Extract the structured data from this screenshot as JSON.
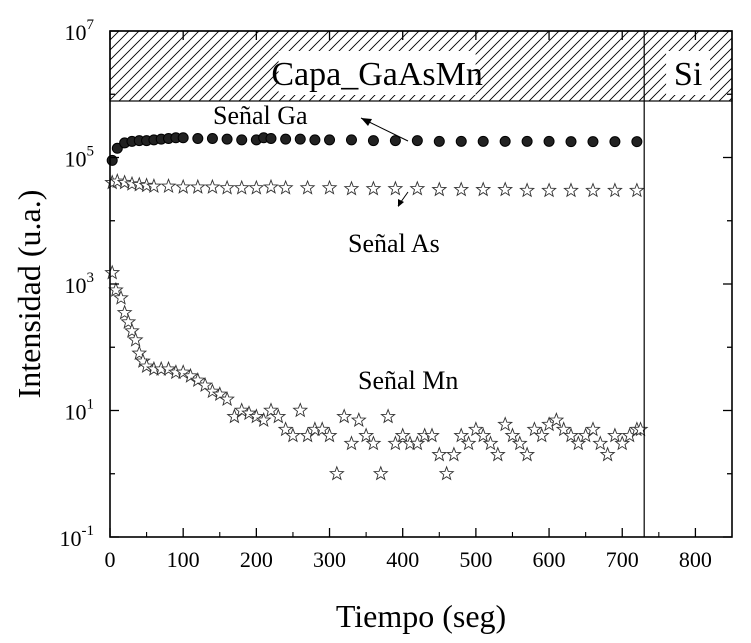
{
  "chart_data": {
    "type": "scatter",
    "xlabel": "Tiempo (seg)",
    "ylabel": "Intensidad (u.a.)",
    "xlim": [
      0,
      850
    ],
    "ylim_log10": [
      -1,
      7
    ],
    "y_scale": "log",
    "x_ticks": [
      0,
      100,
      200,
      300,
      400,
      500,
      600,
      700,
      800
    ],
    "x_tick_labels": [
      "0",
      "100",
      "200",
      "300",
      "400",
      "500",
      "600",
      "700",
      "800"
    ],
    "y_ticks": [
      {
        "base": "10",
        "exp": "-1"
      },
      {
        "base": "10",
        "exp": "1"
      },
      {
        "base": "10",
        "exp": "3"
      },
      {
        "base": "10",
        "exp": "5"
      },
      {
        "base": "10",
        "exp": "7"
      }
    ],
    "regions": [
      {
        "label": "Capa_GaAsMn",
        "x_range": [
          0,
          730
        ]
      },
      {
        "label": "Si",
        "x_range": [
          730,
          850
        ]
      }
    ],
    "annotations": [
      "Señal Ga",
      "Señal As",
      "Señal Mn"
    ],
    "series": [
      {
        "name": "Señal Ga",
        "marker": "circle",
        "x": [
          3,
          10,
          20,
          30,
          40,
          50,
          60,
          70,
          80,
          90,
          100,
          120,
          140,
          160,
          180,
          200,
          210,
          220,
          240,
          260,
          280,
          300,
          330,
          360,
          390,
          420,
          450,
          480,
          510,
          540,
          570,
          600,
          630,
          660,
          690,
          720
        ],
        "y": [
          90000,
          140000,
          170000,
          180000,
          185000,
          185000,
          190000,
          195000,
          200000,
          205000,
          205000,
          200000,
          200000,
          195000,
          190000,
          190000,
          205000,
          200000,
          195000,
          195000,
          190000,
          190000,
          190000,
          185000,
          185000,
          185000,
          180000,
          180000,
          180000,
          180000,
          180000,
          180000,
          178000,
          178000,
          178000,
          178000
        ]
      },
      {
        "name": "Señal As",
        "marker": "star",
        "x": [
          3,
          10,
          20,
          30,
          40,
          50,
          60,
          80,
          100,
          120,
          140,
          160,
          180,
          200,
          220,
          240,
          270,
          300,
          330,
          360,
          390,
          420,
          450,
          480,
          510,
          540,
          570,
          600,
          630,
          660,
          690,
          720
        ],
        "y": [
          40000,
          42000,
          40000,
          38000,
          37000,
          36000,
          35000,
          35000,
          34000,
          34000,
          34000,
          33000,
          33000,
          33000,
          34000,
          33000,
          33000,
          33000,
          32000,
          32000,
          32000,
          32000,
          31000,
          31000,
          31000,
          31000,
          30000,
          30000,
          30000,
          30000,
          30000,
          30000
        ]
      },
      {
        "name": "Señal Mn",
        "marker": "star",
        "x": [
          3,
          8,
          15,
          20,
          25,
          30,
          35,
          40,
          45,
          50,
          60,
          70,
          80,
          90,
          100,
          110,
          120,
          130,
          140,
          150,
          160,
          170,
          180,
          190,
          200,
          210,
          220,
          230,
          240,
          250,
          260,
          270,
          280,
          290,
          300,
          310,
          320,
          330,
          340,
          350,
          360,
          370,
          380,
          390,
          400,
          410,
          420,
          430,
          440,
          450,
          460,
          470,
          480,
          490,
          500,
          510,
          520,
          530,
          540,
          550,
          560,
          570,
          580,
          590,
          600,
          610,
          620,
          630,
          640,
          650,
          660,
          670,
          680,
          690,
          700,
          710,
          720,
          725
        ],
        "y": [
          1500,
          800,
          600,
          350,
          250,
          180,
          130,
          80,
          60,
          50,
          45,
          45,
          45,
          40,
          40,
          35,
          30,
          25,
          20,
          18,
          15,
          8,
          10,
          9,
          8,
          7,
          10,
          8,
          5,
          4,
          10,
          4,
          5,
          5,
          4,
          1,
          8,
          3,
          7,
          4,
          3,
          1,
          8,
          3,
          4,
          3,
          3,
          4,
          4,
          2,
          1,
          2,
          4,
          3,
          5,
          4,
          3,
          2,
          6,
          4,
          3,
          2,
          5,
          4,
          6,
          7,
          5,
          4,
          3,
          4,
          5,
          3,
          2,
          4,
          3,
          4,
          5,
          5
        ]
      }
    ]
  }
}
